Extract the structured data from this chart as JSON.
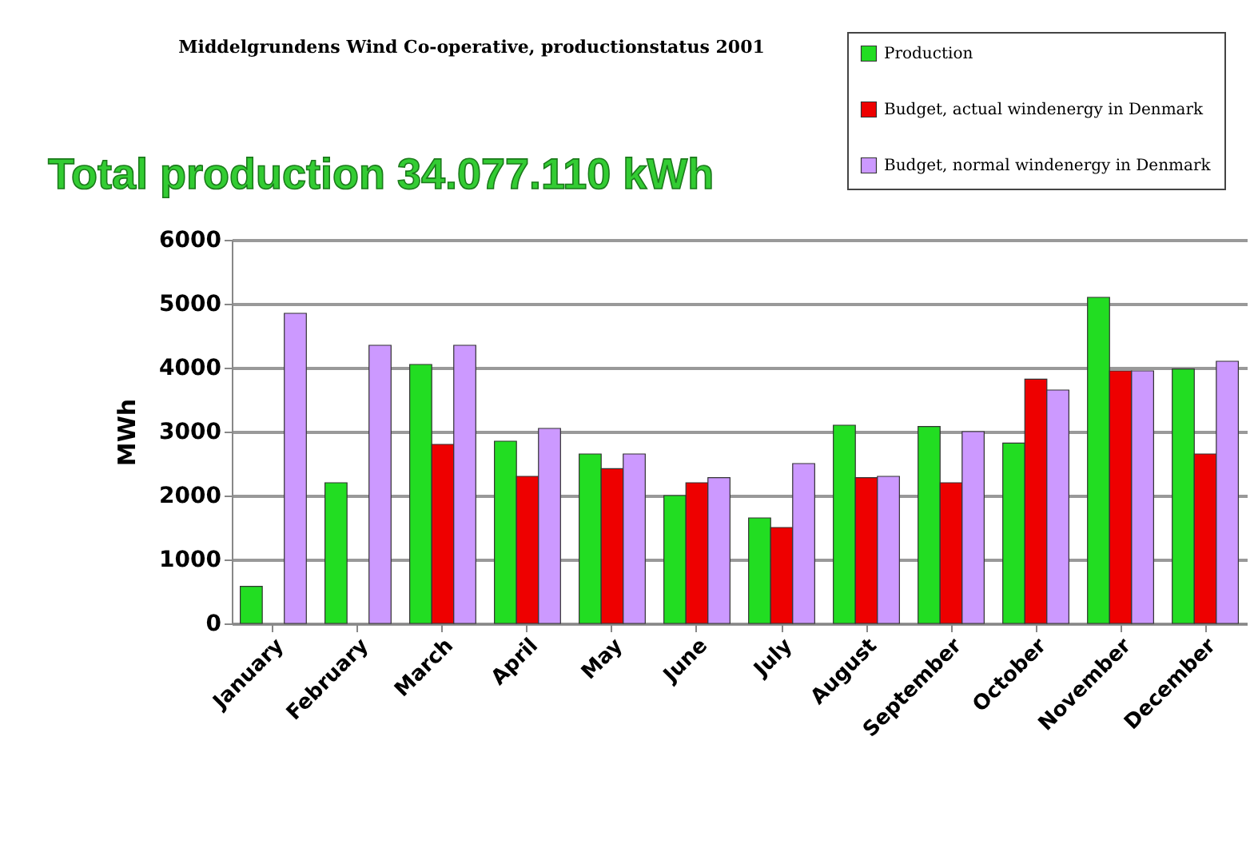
{
  "chart_data": {
    "type": "bar",
    "title": "Middelgrundens Wind Co-operative, productionstatus 2001",
    "annotations": [
      "Total production 34.077.110 kWh"
    ],
    "ylabel": "MWh",
    "categories": [
      "January",
      "February",
      "March",
      "April",
      "May",
      "June",
      "July",
      "August",
      "September",
      "October",
      "November",
      "December"
    ],
    "series": [
      {
        "name": "Production",
        "color": "#22dd22",
        "values": [
          580,
          2200,
          4050,
          2850,
          2650,
          2000,
          1650,
          3100,
          3080,
          2820,
          5100,
          3980
        ]
      },
      {
        "name": "Budget, actual windenergy in Denmark",
        "color": "#ee0000",
        "values": [
          null,
          null,
          2800,
          2300,
          2420,
          2200,
          1500,
          2280,
          2200,
          3820,
          3950,
          2650
        ]
      },
      {
        "name": "Budget, normal windenergy in Denmark",
        "color": "#cc99ff",
        "values": [
          4850,
          4350,
          4350,
          3050,
          2650,
          2280,
          2500,
          2300,
          3000,
          3650,
          3950,
          4100
        ]
      }
    ],
    "ylim": [
      0,
      6000
    ],
    "yticks": [
      0,
      1000,
      2000,
      3000,
      4000,
      5000,
      6000
    ],
    "grid": "y",
    "legend": "top right"
  }
}
